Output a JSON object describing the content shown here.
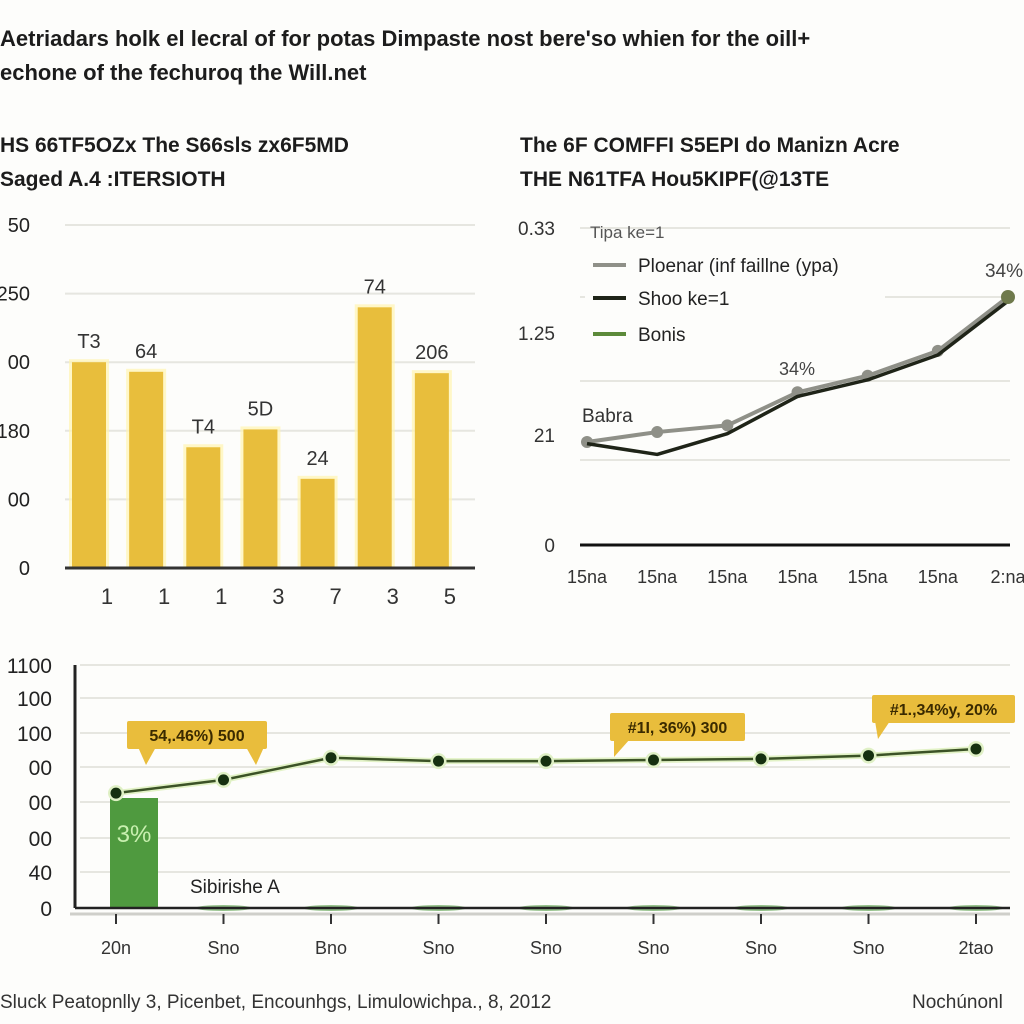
{
  "page": {
    "title_lines": [
      "Aetriadars holk el lecral of for potas Dimpaste nost bere'so whien for the oill+",
      "echone of the fechuroq the Will.net"
    ],
    "footer_left": "Sluck Peatopnlly 3, Picenbet, Encounhgs, Limulowichpa., 8, 2012",
    "footer_right": "Nochúnonl"
  },
  "colors": {
    "bar": "#e8be3c",
    "bar_glow": "#fff3b0",
    "line_gray": "#8f9088",
    "line_dark": "#1f2418",
    "bonis_green": "#5c8a3a",
    "bottom_line": "#3b5226",
    "bottom_dot": "#163010",
    "bottom_bar": "#4f9a3f",
    "callout": "#e9bd3c",
    "grid": "#e6e6e0",
    "axis": "#222222"
  },
  "chart_data": [
    {
      "type": "bar",
      "title": "HS 66TF5OZx The S66sls zx6F5MD",
      "subtitle": "Saged A.4 :ITERSIOTH",
      "xlabel": "",
      "ylabel": "",
      "ylim": [
        0,
        250
      ],
      "grid": true,
      "ytick_values": [
        0,
        50,
        100,
        150,
        200,
        250
      ],
      "ytick_labels": [
        "0",
        "00",
        "180",
        "00",
        "250",
        "50"
      ],
      "categories": [
        "1",
        "1",
        "1",
        "3",
        "7",
        "3",
        "5"
      ],
      "values": [
        150,
        143,
        88,
        101,
        65,
        190,
        142
      ],
      "data_labels": [
        "T3",
        "64",
        "T4",
        "5D",
        "24",
        "74",
        "206"
      ]
    },
    {
      "type": "line",
      "title": "The 6F COMFFI S5EPI do Manizn Acre",
      "subtitle": "THE N61TFA Hou5KIPF(@13TE",
      "xlabel": "",
      "ylabel": "",
      "ylim": [
        0,
        4
      ],
      "grid": true,
      "legend_position": "top-left",
      "legend_title": "Tipa ke=1",
      "ytick_values": [
        0,
        1.25,
        2.2,
        3.25
      ],
      "ytick_labels": [
        "0",
        "21",
        "1.25",
        "0.33"
      ],
      "x": [
        "15na",
        "15na",
        "15na",
        "15na",
        "15na",
        "15na",
        "2:na"
      ],
      "series": [
        {
          "name": "Ploenar (inf faillne (ypa)",
          "values": [
            1.0,
            1.12,
            1.2,
            1.6,
            1.8,
            2.1,
            2.75
          ]
        },
        {
          "name": "Shoo ke=1",
          "values": [
            0.98,
            0.85,
            1.1,
            1.55,
            1.75,
            2.05,
            2.7
          ]
        },
        {
          "name": "Bonis",
          "values": []
        }
      ],
      "annotations": [
        {
          "text": "Babra",
          "x_index": 0
        },
        {
          "text": "34%",
          "x_index": 3
        },
        {
          "text": "34%",
          "x_index": 6
        }
      ]
    },
    {
      "type": "line",
      "title": "",
      "xlabel": "",
      "ylabel": "",
      "ylim": [
        0,
        1100
      ],
      "grid": true,
      "ytick_values": [
        0,
        157,
        314,
        471,
        628,
        785,
        942,
        1100
      ],
      "ytick_labels": [
        "0",
        "40",
        "00",
        "00",
        "00",
        "100",
        "100",
        "1100"
      ],
      "x": [
        "20n",
        "Sno",
        "Bno",
        "Sno",
        "Sno",
        "Sno",
        "Sno",
        "Sno",
        "2tao"
      ],
      "series": [
        {
          "name": "line",
          "values": [
            520,
            580,
            680,
            665,
            665,
            670,
            675,
            690,
            720
          ]
        },
        {
          "name": "Sibirishe A",
          "type": "bar",
          "values": [
            470,
            0,
            0,
            0,
            0,
            0,
            0,
            0,
            0
          ]
        }
      ],
      "bar_label": "3%",
      "series_label": "Sibirishe A",
      "callouts": [
        {
          "text": "54,.46%) 500",
          "x_index": 1
        },
        {
          "text": "#1I, 36%) 300",
          "x_index": 5
        },
        {
          "text": "#1.,34%y, 20%",
          "x_index": 7
        }
      ]
    }
  ]
}
